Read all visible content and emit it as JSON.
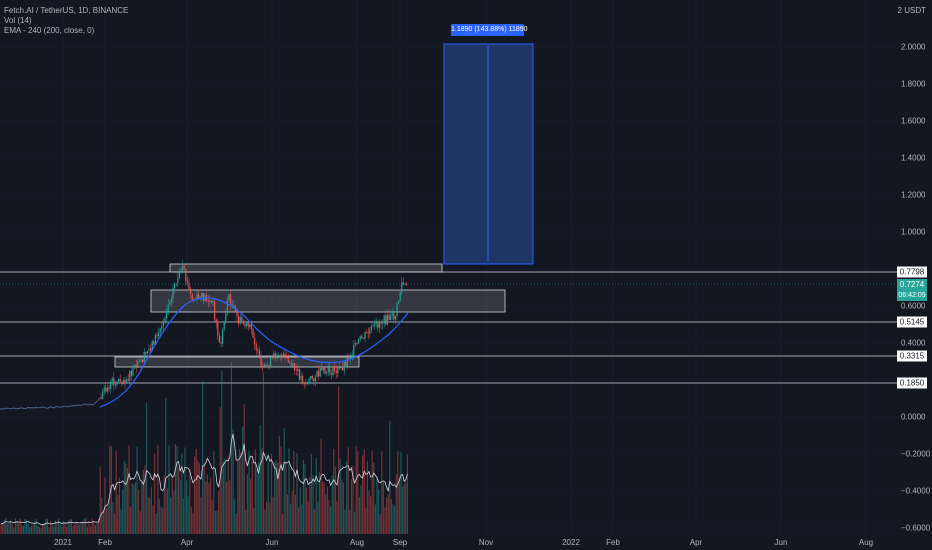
{
  "legend": {
    "symbol": "Fetch.AI / TetherUS, 1D, BINANCE",
    "vol": "Vol (14)",
    "ema": "EMA - 240 (200, close, 0)"
  },
  "price_scale": {
    "unit": "2 USDT",
    "ticks": [
      "2.0000",
      "1.8000",
      "1.6000",
      "1.4000",
      "1.2000",
      "1.0000",
      "0.6000",
      "0.4000",
      "0.0000",
      "−0.2000",
      "−0.4000",
      "−0.6000"
    ],
    "line_labels": [
      "0.7798",
      "0.5145",
      "0.3315",
      "0.1850"
    ],
    "current_price": "0.7274",
    "countdown": "06:42:09"
  },
  "time_axis": {
    "ticks": [
      "2021",
      "Feb",
      "Apr",
      "Jun",
      "Aug",
      "Sep",
      "Nov",
      "2022",
      "Feb",
      "Apr",
      "Jun",
      "Aug"
    ]
  },
  "measure_label": "1.1890 (143.88%) 11890",
  "colors": {
    "background": "#131722",
    "up": "#26a69a",
    "down": "#ef5350",
    "ema": "#2962ff",
    "zone_fill": "#1e3566",
    "zone_border": "#2962ff",
    "level_line": "#d1d4dc",
    "volume_ma": "#d1d4dc"
  }
}
